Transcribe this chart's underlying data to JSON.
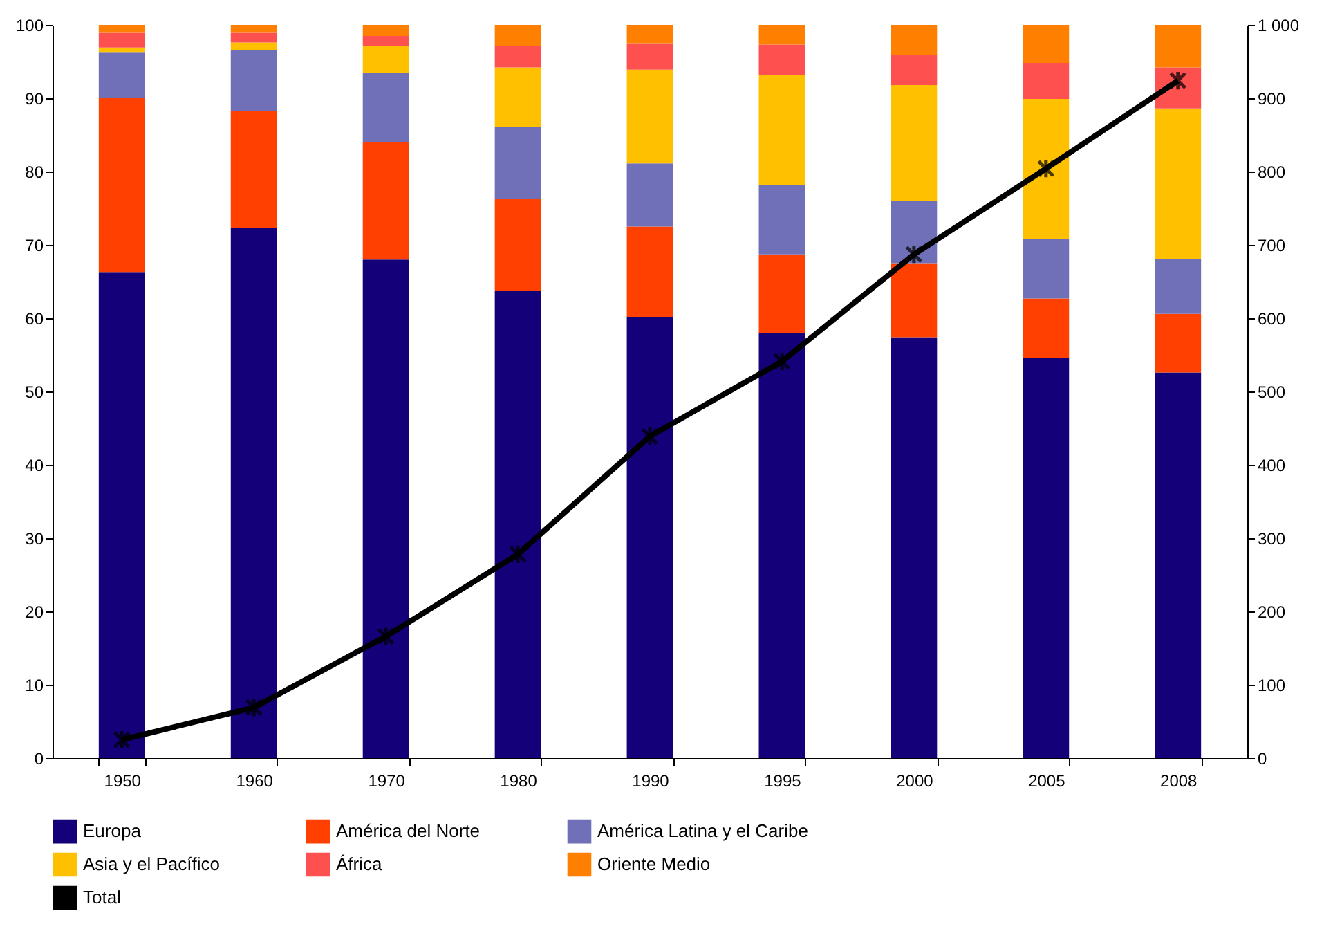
{
  "chart_data": {
    "type": "bar",
    "stacked": true,
    "categories": [
      "1950",
      "1960",
      "1970",
      "1980",
      "1990",
      "1995",
      "2000",
      "2005",
      "2008"
    ],
    "series": [
      {
        "name": "Europa",
        "color": "#140078",
        "values": [
          66.3,
          72.3,
          68,
          63.7,
          60.1,
          58,
          57.4,
          54.6,
          52.6
        ]
      },
      {
        "name": "América del Norte",
        "color": "#ff4000",
        "values": [
          23.7,
          15.9,
          16,
          12.6,
          12.4,
          10.7,
          10.1,
          8.1,
          8
        ]
      },
      {
        "name": "América Latina y el Caribe",
        "color": "#7070b8",
        "values": [
          6.3,
          8.3,
          9.4,
          9.8,
          8.6,
          9.5,
          8.5,
          8.1,
          7.5
        ]
      },
      {
        "name": "Asia y el Pacífico",
        "color": "#ffc000",
        "values": [
          0.6,
          1.1,
          3.7,
          8.1,
          12.8,
          15,
          15.8,
          19.1,
          20.5
        ]
      },
      {
        "name": "África",
        "color": "#ff5050",
        "values": [
          2.1,
          1.4,
          1.4,
          2.9,
          3.6,
          4.1,
          4.1,
          4.9,
          5.6
        ]
      },
      {
        "name": "Oriente Medio",
        "color": "#ff8000",
        "values": [
          1,
          1,
          1.5,
          2.9,
          2.5,
          2.7,
          4.1,
          5.2,
          5.8
        ]
      },
      {
        "name": "Total",
        "type": "line",
        "axis": "y2",
        "color": "#000000",
        "marker": "cross",
        "values": [
          25,
          69,
          166,
          278,
          439,
          541,
          687,
          804,
          924
        ]
      }
    ],
    "ylim": [
      0,
      100
    ],
    "yticks": [
      0,
      10,
      20,
      30,
      40,
      50,
      60,
      70,
      80,
      90,
      100
    ],
    "y2lim": [
      0,
      1000
    ],
    "y2ticks": [
      0,
      100,
      200,
      300,
      400,
      500,
      600,
      700,
      800,
      900,
      {
        "value": 1000,
        "label": "1 000"
      }
    ],
    "legend": "bottom",
    "grid": false
  }
}
